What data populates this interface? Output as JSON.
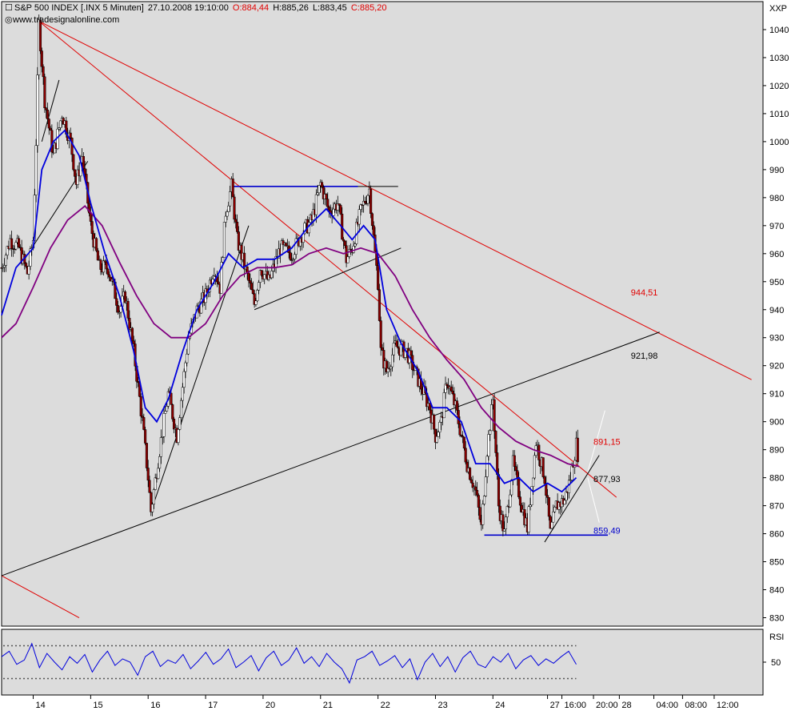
{
  "header": {
    "title": "S&P 500 INDEX [.INX  5 Minuten]",
    "timestamp": "27.10.2008 19:10:00",
    "open": "O:884,44",
    "high": "H:885,26",
    "low": "L:883,45",
    "close": "C:885,20",
    "source": "www.tradesignalonline.com",
    "symbol": "XXP"
  },
  "colors": {
    "plot_bg": "#dcdcdc",
    "frame": "#000000",
    "ma_fast": "#0000dd",
    "ma_slow": "#800080",
    "candle_up": "#ffffff",
    "candle_down": "#8b0000",
    "resistance": "#e00000",
    "support": "#000000",
    "level_line": "#0000cc"
  },
  "chart_data": {
    "type": "candlestick",
    "instrument": "S&P 500 INDEX [.INX  5 Minuten]",
    "y_axis": {
      "ticks": [
        830,
        840,
        850,
        860,
        870,
        880,
        890,
        900,
        910,
        920,
        930,
        940,
        950,
        960,
        970,
        980,
        990,
        1000,
        1010,
        1020,
        1030,
        1040
      ],
      "range": [
        827,
        1050
      ]
    },
    "x_axis": {
      "range": [
        -0.55,
        12.7
      ],
      "tick_labels": [
        {
          "label": "14",
          "x": 0
        },
        {
          "label": "15",
          "x": 1
        },
        {
          "label": "16",
          "x": 2
        },
        {
          "label": "17",
          "x": 3
        },
        {
          "label": "20",
          "x": 4
        },
        {
          "label": "21",
          "x": 5
        },
        {
          "label": "22",
          "x": 6
        },
        {
          "label": "23",
          "x": 7
        },
        {
          "label": "24",
          "x": 8
        },
        {
          "label": "27",
          "x": 8.95
        },
        {
          "label": "16:00",
          "x": 9.2
        },
        {
          "label": "20:00",
          "x": 9.75
        },
        {
          "label": "28",
          "x": 10.2
        },
        {
          "label": "04:00",
          "x": 10.8
        },
        {
          "label": "08:00",
          "x": 11.3
        },
        {
          "label": "12:00",
          "x": 11.85
        }
      ]
    },
    "price_path": [
      {
        "x": -0.55,
        "v": 955
      },
      {
        "x": -0.4,
        "v": 965
      },
      {
        "x": -0.25,
        "v": 962
      },
      {
        "x": -0.1,
        "v": 953
      },
      {
        "x": 0.0,
        "v": 965
      },
      {
        "x": 0.05,
        "v": 1000
      },
      {
        "x": 0.1,
        "v": 1042
      },
      {
        "x": 0.2,
        "v": 1015
      },
      {
        "x": 0.35,
        "v": 995
      },
      {
        "x": 0.5,
        "v": 1010
      },
      {
        "x": 0.65,
        "v": 1000
      },
      {
        "x": 0.75,
        "v": 985
      },
      {
        "x": 0.85,
        "v": 995
      },
      {
        "x": 1.0,
        "v": 970
      },
      {
        "x": 1.15,
        "v": 955
      },
      {
        "x": 1.3,
        "v": 955
      },
      {
        "x": 1.5,
        "v": 940
      },
      {
        "x": 1.6,
        "v": 945
      },
      {
        "x": 1.75,
        "v": 925
      },
      {
        "x": 1.9,
        "v": 900
      },
      {
        "x": 2.0,
        "v": 880
      },
      {
        "x": 2.05,
        "v": 868
      },
      {
        "x": 2.2,
        "v": 890
      },
      {
        "x": 2.35,
        "v": 910
      },
      {
        "x": 2.5,
        "v": 895
      },
      {
        "x": 2.7,
        "v": 930
      },
      {
        "x": 2.85,
        "v": 940
      },
      {
        "x": 3.0,
        "v": 945
      },
      {
        "x": 3.15,
        "v": 955
      },
      {
        "x": 3.25,
        "v": 948
      },
      {
        "x": 3.35,
        "v": 975
      },
      {
        "x": 3.45,
        "v": 984
      },
      {
        "x": 3.55,
        "v": 965
      },
      {
        "x": 3.75,
        "v": 950
      },
      {
        "x": 3.85,
        "v": 942
      },
      {
        "x": 3.95,
        "v": 955
      },
      {
        "x": 4.1,
        "v": 950
      },
      {
        "x": 4.3,
        "v": 962
      },
      {
        "x": 4.5,
        "v": 960
      },
      {
        "x": 4.7,
        "v": 968
      },
      {
        "x": 4.85,
        "v": 972
      },
      {
        "x": 5.0,
        "v": 985
      },
      {
        "x": 5.15,
        "v": 975
      },
      {
        "x": 5.3,
        "v": 978
      },
      {
        "x": 5.45,
        "v": 958
      },
      {
        "x": 5.55,
        "v": 962
      },
      {
        "x": 5.7,
        "v": 975
      },
      {
        "x": 5.85,
        "v": 983
      },
      {
        "x": 5.95,
        "v": 960
      },
      {
        "x": 6.0,
        "v": 950
      },
      {
        "x": 6.05,
        "v": 925
      },
      {
        "x": 6.15,
        "v": 918
      },
      {
        "x": 6.3,
        "v": 927
      },
      {
        "x": 6.5,
        "v": 925
      },
      {
        "x": 6.7,
        "v": 915
      },
      {
        "x": 6.9,
        "v": 905
      },
      {
        "x": 7.0,
        "v": 895
      },
      {
        "x": 7.1,
        "v": 900
      },
      {
        "x": 7.2,
        "v": 915
      },
      {
        "x": 7.35,
        "v": 905
      },
      {
        "x": 7.55,
        "v": 885
      },
      {
        "x": 7.7,
        "v": 875
      },
      {
        "x": 7.8,
        "v": 862
      },
      {
        "x": 7.9,
        "v": 890
      },
      {
        "x": 8.0,
        "v": 908
      },
      {
        "x": 8.1,
        "v": 870
      },
      {
        "x": 8.2,
        "v": 860
      },
      {
        "x": 8.35,
        "v": 885
      },
      {
        "x": 8.5,
        "v": 870
      },
      {
        "x": 8.6,
        "v": 862
      },
      {
        "x": 8.75,
        "v": 893
      },
      {
        "x": 8.9,
        "v": 880
      },
      {
        "x": 9.0,
        "v": 860
      },
      {
        "x": 9.1,
        "v": 870
      },
      {
        "x": 9.25,
        "v": 872
      },
      {
        "x": 9.35,
        "v": 880
      },
      {
        "x": 9.45,
        "v": 892
      },
      {
        "x": 9.5,
        "v": 885
      }
    ],
    "ma_fast": [
      {
        "x": -0.55,
        "v": 938
      },
      {
        "x": -0.3,
        "v": 955
      },
      {
        "x": 0.0,
        "v": 962
      },
      {
        "x": 0.15,
        "v": 990
      },
      {
        "x": 0.35,
        "v": 1000
      },
      {
        "x": 0.55,
        "v": 1004
      },
      {
        "x": 0.8,
        "v": 995
      },
      {
        "x": 1.0,
        "v": 978
      },
      {
        "x": 1.25,
        "v": 960
      },
      {
        "x": 1.5,
        "v": 945
      },
      {
        "x": 1.75,
        "v": 925
      },
      {
        "x": 1.95,
        "v": 905
      },
      {
        "x": 2.15,
        "v": 900
      },
      {
        "x": 2.35,
        "v": 908
      },
      {
        "x": 2.6,
        "v": 925
      },
      {
        "x": 2.85,
        "v": 940
      },
      {
        "x": 3.15,
        "v": 950
      },
      {
        "x": 3.4,
        "v": 960
      },
      {
        "x": 3.65,
        "v": 955
      },
      {
        "x": 3.9,
        "v": 958
      },
      {
        "x": 4.2,
        "v": 958
      },
      {
        "x": 4.5,
        "v": 962
      },
      {
        "x": 4.8,
        "v": 970
      },
      {
        "x": 5.1,
        "v": 976
      },
      {
        "x": 5.35,
        "v": 970
      },
      {
        "x": 5.55,
        "v": 965
      },
      {
        "x": 5.75,
        "v": 970
      },
      {
        "x": 5.95,
        "v": 965
      },
      {
        "x": 6.15,
        "v": 940
      },
      {
        "x": 6.4,
        "v": 928
      },
      {
        "x": 6.7,
        "v": 918
      },
      {
        "x": 6.95,
        "v": 905
      },
      {
        "x": 7.2,
        "v": 905
      },
      {
        "x": 7.45,
        "v": 900
      },
      {
        "x": 7.7,
        "v": 885
      },
      {
        "x": 7.95,
        "v": 885
      },
      {
        "x": 8.2,
        "v": 878
      },
      {
        "x": 8.45,
        "v": 880
      },
      {
        "x": 8.7,
        "v": 875
      },
      {
        "x": 8.95,
        "v": 878
      },
      {
        "x": 9.2,
        "v": 875
      },
      {
        "x": 9.45,
        "v": 880
      }
    ],
    "ma_slow": [
      {
        "x": -0.55,
        "v": 930
      },
      {
        "x": -0.3,
        "v": 935
      },
      {
        "x": 0.0,
        "v": 948
      },
      {
        "x": 0.3,
        "v": 962
      },
      {
        "x": 0.6,
        "v": 972
      },
      {
        "x": 0.9,
        "v": 977
      },
      {
        "x": 1.2,
        "v": 970
      },
      {
        "x": 1.5,
        "v": 957
      },
      {
        "x": 1.8,
        "v": 945
      },
      {
        "x": 2.1,
        "v": 935
      },
      {
        "x": 2.4,
        "v": 930
      },
      {
        "x": 2.7,
        "v": 930
      },
      {
        "x": 3.0,
        "v": 935
      },
      {
        "x": 3.3,
        "v": 945
      },
      {
        "x": 3.6,
        "v": 952
      },
      {
        "x": 3.9,
        "v": 955
      },
      {
        "x": 4.2,
        "v": 955
      },
      {
        "x": 4.5,
        "v": 956
      },
      {
        "x": 4.8,
        "v": 960
      },
      {
        "x": 5.1,
        "v": 962
      },
      {
        "x": 5.4,
        "v": 960
      },
      {
        "x": 5.7,
        "v": 962
      },
      {
        "x": 6.0,
        "v": 960
      },
      {
        "x": 6.3,
        "v": 952
      },
      {
        "x": 6.6,
        "v": 940
      },
      {
        "x": 6.9,
        "v": 930
      },
      {
        "x": 7.2,
        "v": 922
      },
      {
        "x": 7.5,
        "v": 915
      },
      {
        "x": 7.8,
        "v": 905
      },
      {
        "x": 8.1,
        "v": 898
      },
      {
        "x": 8.4,
        "v": 893
      },
      {
        "x": 8.7,
        "v": 890
      },
      {
        "x": 9.0,
        "v": 888
      },
      {
        "x": 9.3,
        "v": 885
      },
      {
        "x": 9.5,
        "v": 884
      }
    ],
    "trendlines": [
      {
        "color": "red",
        "from": {
          "x": 0.1,
          "v": 1043
        },
        "to": {
          "x": 12.5,
          "v": 915
        }
      },
      {
        "color": "red",
        "from": {
          "x": 0.1,
          "v": 1043
        },
        "to": {
          "x": 10.15,
          "v": 873
        }
      },
      {
        "color": "red",
        "from": {
          "x": -0.55,
          "v": 845
        },
        "to": {
          "x": 0.8,
          "v": 830
        }
      },
      {
        "color": "black",
        "from": {
          "x": -0.55,
          "v": 845
        },
        "to": {
          "x": 10.9,
          "v": 932
        }
      },
      {
        "color": "black",
        "from": {
          "x": 3.85,
          "v": 940
        },
        "to": {
          "x": 6.4,
          "v": 962
        }
      },
      {
        "color": "black",
        "from": {
          "x": 3.45,
          "v": 984
        },
        "to": {
          "x": 6.35,
          "v": 984
        }
      },
      {
        "color": "blue",
        "from": {
          "x": 3.45,
          "v": 984
        },
        "to": {
          "x": 5.65,
          "v": 984
        }
      },
      {
        "color": "black",
        "from": {
          "x": 2.05,
          "v": 868
        },
        "to": {
          "x": 3.75,
          "v": 970
        }
      },
      {
        "color": "black",
        "from": {
          "x": 0.15,
          "v": 1000
        },
        "to": {
          "x": 0.45,
          "v": 1022
        }
      },
      {
        "color": "black",
        "from": {
          "x": -0.15,
          "v": 958
        },
        "to": {
          "x": 0.95,
          "v": 993
        }
      },
      {
        "color": "black",
        "from": {
          "x": 8.9,
          "v": 857
        },
        "to": {
          "x": 9.85,
          "v": 888
        }
      },
      {
        "color": "blue",
        "from": {
          "x": 7.85,
          "v": 859.49
        },
        "to": {
          "x": 10.0,
          "v": 859.49
        }
      },
      {
        "color": "white",
        "from": {
          "x": 9.65,
          "v": 882
        },
        "to": {
          "x": 9.95,
          "v": 904
        }
      },
      {
        "color": "white",
        "from": {
          "x": 9.65,
          "v": 880
        },
        "to": {
          "x": 9.85,
          "v": 864
        }
      }
    ],
    "annotations": [
      {
        "text": "944,51",
        "x": 10.4,
        "v": 944.51,
        "color": "red"
      },
      {
        "text": "921,98",
        "x": 10.4,
        "v": 921.98,
        "color": "black"
      },
      {
        "text": "891,15",
        "x": 9.75,
        "v": 891.15,
        "color": "red"
      },
      {
        "text": "877,93",
        "x": 9.75,
        "v": 877.93,
        "color": "black"
      },
      {
        "text": "859,49",
        "x": 9.75,
        "v": 859.49,
        "color": "blue"
      }
    ],
    "rsi": {
      "label": "RSI",
      "ticks": [
        50
      ],
      "range": [
        20,
        80
      ],
      "upper_band": 65,
      "lower_band": 35,
      "values": [
        55,
        60,
        48,
        52,
        67,
        45,
        58,
        50,
        43,
        55,
        49,
        57,
        41,
        52,
        60,
        47,
        53,
        50,
        38,
        55,
        60,
        46,
        52,
        49,
        57,
        44,
        51,
        59,
        48,
        53,
        62,
        45,
        50,
        56,
        42,
        54,
        60,
        47,
        52,
        63,
        49,
        55,
        46,
        58,
        50,
        44,
        31,
        52,
        55,
        60,
        47,
        51,
        56,
        45,
        53,
        34,
        50,
        58,
        46,
        55,
        41,
        54,
        60,
        48,
        45,
        55,
        50,
        58,
        44,
        52,
        56,
        47,
        53,
        49,
        55,
        60,
        48
      ]
    }
  }
}
